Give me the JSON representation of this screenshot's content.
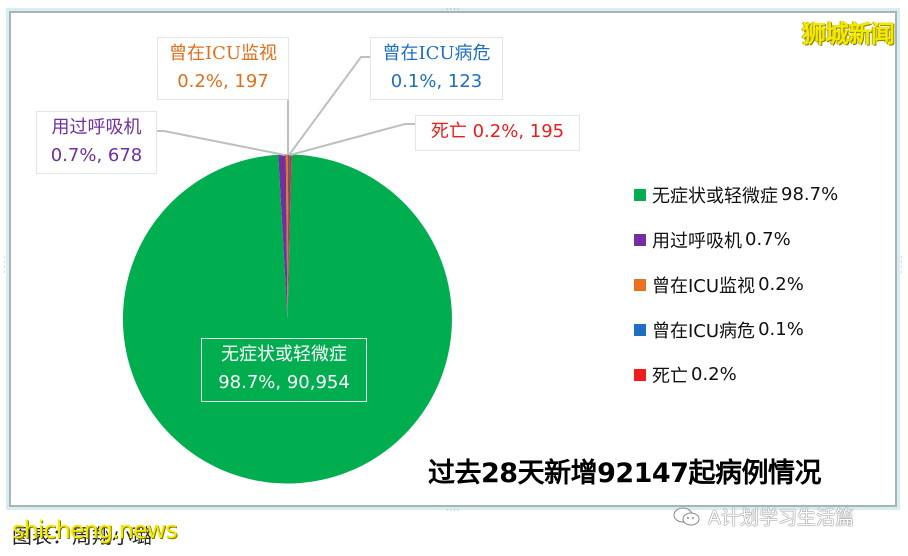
{
  "brand": "狮城新闻",
  "title": "过去28天新增92147起病例情况",
  "caption": "图表：周翔小璐",
  "watermarks": {
    "site": "shicheng.news",
    "wechat": "A计划学习生活篇"
  },
  "callouts": {
    "mild": {
      "name": "无症状或轻微症",
      "value": "98.7%, 90,954"
    },
    "ventilator": {
      "name": "用过呼吸机",
      "value": "0.7%, 678"
    },
    "icu_monitor": {
      "name": "曾在ICU监视",
      "value": "0.2%, 197"
    },
    "icu_critical": {
      "name": "曾在ICU病危",
      "value": "0.1%, 123"
    },
    "death": {
      "name": "死亡",
      "value": "0.2%, 195"
    }
  },
  "legend": [
    {
      "label": "无症状或轻微症",
      "pct": "98.7%",
      "color": "#00ad4f"
    },
    {
      "label": "用过呼吸机",
      "pct": "0.7%",
      "color": "#7030a0"
    },
    {
      "label": "曾在ICU监视",
      "pct": "0.2%",
      "color": "#e8721f"
    },
    {
      "label": "曾在ICU病危",
      "pct": "0.1%",
      "color": "#1f6fc0"
    },
    {
      "label": "死亡",
      "pct": "0.2%",
      "color": "#ee1c1c"
    }
  ],
  "chart_data": {
    "type": "pie",
    "title": "过去28天新增92147起病例情况",
    "total": 92147,
    "categories": [
      "无症状或轻微症",
      "用过呼吸机",
      "曾在ICU监视",
      "曾在ICU病危",
      "死亡"
    ],
    "values": [
      90954,
      678,
      197,
      123,
      195
    ],
    "percentages": [
      98.7,
      0.7,
      0.2,
      0.1,
      0.2
    ],
    "colors": [
      "#00ad4f",
      "#7030a0",
      "#e8721f",
      "#1f6fc0",
      "#ee1c1c"
    ],
    "legend_position": "right",
    "data_labels": [
      "98.7%, 90,954",
      "0.7%, 678",
      "0.2%, 197",
      "0.1%, 123",
      "0.2%, 195"
    ]
  }
}
